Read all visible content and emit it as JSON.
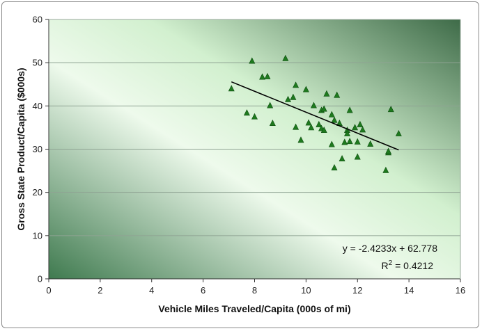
{
  "chart_data": {
    "type": "scatter",
    "title": "",
    "xlabel": "Vehicle Miles Traveled/Capita (000s of mi)",
    "ylabel": "Gross State Product/Capita ($000s)",
    "xlim": [
      0,
      16
    ],
    "ylim": [
      0,
      60
    ],
    "x_ticks": [
      0,
      2,
      4,
      6,
      8,
      10,
      12,
      14,
      16
    ],
    "y_ticks": [
      0,
      10,
      20,
      30,
      40,
      50,
      60
    ],
    "grid": "horizontal",
    "marker": "triangle",
    "marker_color": "#1e7a1e",
    "plot_background": "green gradient",
    "series": [
      {
        "points": [
          [
            7.1,
            44.0
          ],
          [
            7.7,
            38.4
          ],
          [
            7.9,
            50.4
          ],
          [
            8.0,
            37.5
          ],
          [
            8.3,
            46.7
          ],
          [
            8.5,
            46.8
          ],
          [
            8.6,
            40.1
          ],
          [
            8.7,
            36.0
          ],
          [
            9.2,
            51.0
          ],
          [
            9.3,
            41.5
          ],
          [
            9.5,
            42.0
          ],
          [
            9.6,
            35.1
          ],
          [
            9.6,
            44.8
          ],
          [
            9.8,
            32.1
          ],
          [
            10.0,
            43.8
          ],
          [
            10.1,
            36.1
          ],
          [
            10.2,
            35.0
          ],
          [
            10.3,
            40.1
          ],
          [
            10.5,
            35.7
          ],
          [
            10.6,
            34.8
          ],
          [
            10.6,
            39.0
          ],
          [
            10.7,
            34.4
          ],
          [
            10.7,
            39.3
          ],
          [
            10.8,
            42.8
          ],
          [
            11.0,
            31.1
          ],
          [
            11.0,
            38.0
          ],
          [
            11.1,
            25.7
          ],
          [
            11.1,
            36.7
          ],
          [
            11.2,
            42.5
          ],
          [
            11.3,
            36.0
          ],
          [
            11.4,
            27.8
          ],
          [
            11.5,
            31.6
          ],
          [
            11.6,
            34.4
          ],
          [
            11.6,
            33.6
          ],
          [
            11.7,
            39.0
          ],
          [
            11.7,
            31.8
          ],
          [
            11.9,
            35.0
          ],
          [
            12.0,
            31.7
          ],
          [
            12.0,
            28.2
          ],
          [
            12.1,
            35.7
          ],
          [
            12.2,
            34.5
          ],
          [
            12.5,
            31.2
          ],
          [
            13.1,
            25.1
          ],
          [
            13.2,
            29.2
          ],
          [
            13.2,
            29.5
          ],
          [
            13.3,
            39.2
          ],
          [
            13.6,
            33.6
          ]
        ]
      }
    ],
    "trendline": {
      "slope": -2.4233,
      "intercept": 62.778,
      "x_range": [
        7.1,
        13.6
      ],
      "equation": "y = -2.4233x + 62.778",
      "r2_prefix": "R",
      "r2_sup": "2",
      "r2_value": " = 0.4212"
    }
  }
}
